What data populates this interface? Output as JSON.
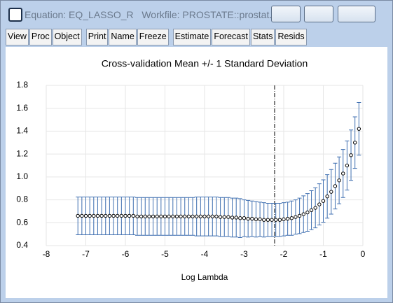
{
  "window": {
    "title": "Equation: EQ_LASSO_R   Workfile: PROSTATE::prostat..."
  },
  "toolbar": [
    "View",
    "Proc",
    "Object",
    "Print",
    "Name",
    "Freeze",
    "Estimate",
    "Forecast",
    "Stats",
    "Resids"
  ],
  "chart_data": {
    "type": "errorbar",
    "title": "Cross-validation Mean +/- 1 Standard Deviation",
    "x_label": "Log Lambda",
    "x": [
      -7.2,
      -7.1,
      -7.0,
      -6.9,
      -6.8,
      -6.7,
      -6.6,
      -6.5,
      -6.4,
      -6.3,
      -6.2,
      -6.1,
      -6.0,
      -5.9,
      -5.8,
      -5.7,
      -5.6,
      -5.5,
      -5.4,
      -5.3,
      -5.2,
      -5.1,
      -5.0,
      -4.9,
      -4.8,
      -4.7,
      -4.6,
      -4.5,
      -4.4,
      -4.3,
      -4.2,
      -4.1,
      -4.0,
      -3.9,
      -3.8,
      -3.7,
      -3.6,
      -3.5,
      -3.4,
      -3.3,
      -3.2,
      -3.1,
      -3.0,
      -2.9,
      -2.8,
      -2.7,
      -2.6,
      -2.5,
      -2.4,
      -2.3,
      -2.2,
      -2.1,
      -2.0,
      -1.9,
      -1.8,
      -1.7,
      -1.6,
      -1.5,
      -1.4,
      -1.3,
      -1.2,
      -1.1,
      -1.0,
      -0.9,
      -0.8,
      -0.7,
      -0.6,
      -0.5,
      -0.4,
      -0.3,
      -0.2,
      -0.1
    ],
    "values": [
      0.66,
      0.66,
      0.66,
      0.66,
      0.66,
      0.66,
      0.66,
      0.66,
      0.66,
      0.66,
      0.66,
      0.66,
      0.66,
      0.66,
      0.66,
      0.655,
      0.655,
      0.655,
      0.655,
      0.655,
      0.655,
      0.655,
      0.655,
      0.655,
      0.655,
      0.655,
      0.655,
      0.655,
      0.655,
      0.655,
      0.655,
      0.655,
      0.655,
      0.655,
      0.655,
      0.655,
      0.65,
      0.65,
      0.65,
      0.645,
      0.645,
      0.64,
      0.64,
      0.635,
      0.635,
      0.63,
      0.63,
      0.625,
      0.625,
      0.625,
      0.625,
      0.625,
      0.63,
      0.635,
      0.64,
      0.65,
      0.66,
      0.675,
      0.69,
      0.71,
      0.73,
      0.76,
      0.79,
      0.83,
      0.87,
      0.92,
      0.97,
      1.03,
      1.1,
      1.19,
      1.3,
      1.42
    ],
    "errors": [
      0.165,
      0.165,
      0.165,
      0.165,
      0.165,
      0.165,
      0.165,
      0.165,
      0.165,
      0.165,
      0.165,
      0.165,
      0.165,
      0.165,
      0.165,
      0.165,
      0.165,
      0.165,
      0.165,
      0.165,
      0.165,
      0.165,
      0.165,
      0.165,
      0.165,
      0.165,
      0.165,
      0.165,
      0.165,
      0.165,
      0.17,
      0.17,
      0.17,
      0.17,
      0.17,
      0.17,
      0.17,
      0.17,
      0.17,
      0.17,
      0.17,
      0.17,
      0.16,
      0.16,
      0.155,
      0.155,
      0.15,
      0.15,
      0.145,
      0.145,
      0.145,
      0.145,
      0.145,
      0.145,
      0.15,
      0.15,
      0.155,
      0.16,
      0.165,
      0.17,
      0.175,
      0.18,
      0.185,
      0.19,
      0.195,
      0.2,
      0.205,
      0.21,
      0.215,
      0.22,
      0.225,
      0.23
    ],
    "color": "#3f6fb0",
    "marker_color": "#000000",
    "vline": -2.23,
    "xlim": [
      -8,
      0
    ],
    "xticks": [
      -8,
      -7,
      -6,
      -5,
      -4,
      -3,
      -2,
      -1,
      0
    ],
    "ylim": [
      0.4,
      1.8
    ],
    "yticks": [
      0.4,
      0.6,
      0.8,
      {
        "value": 1,
        "label": "1.0"
      },
      1.2,
      1.4,
      1.6,
      1.8
    ],
    "grid": true
  }
}
